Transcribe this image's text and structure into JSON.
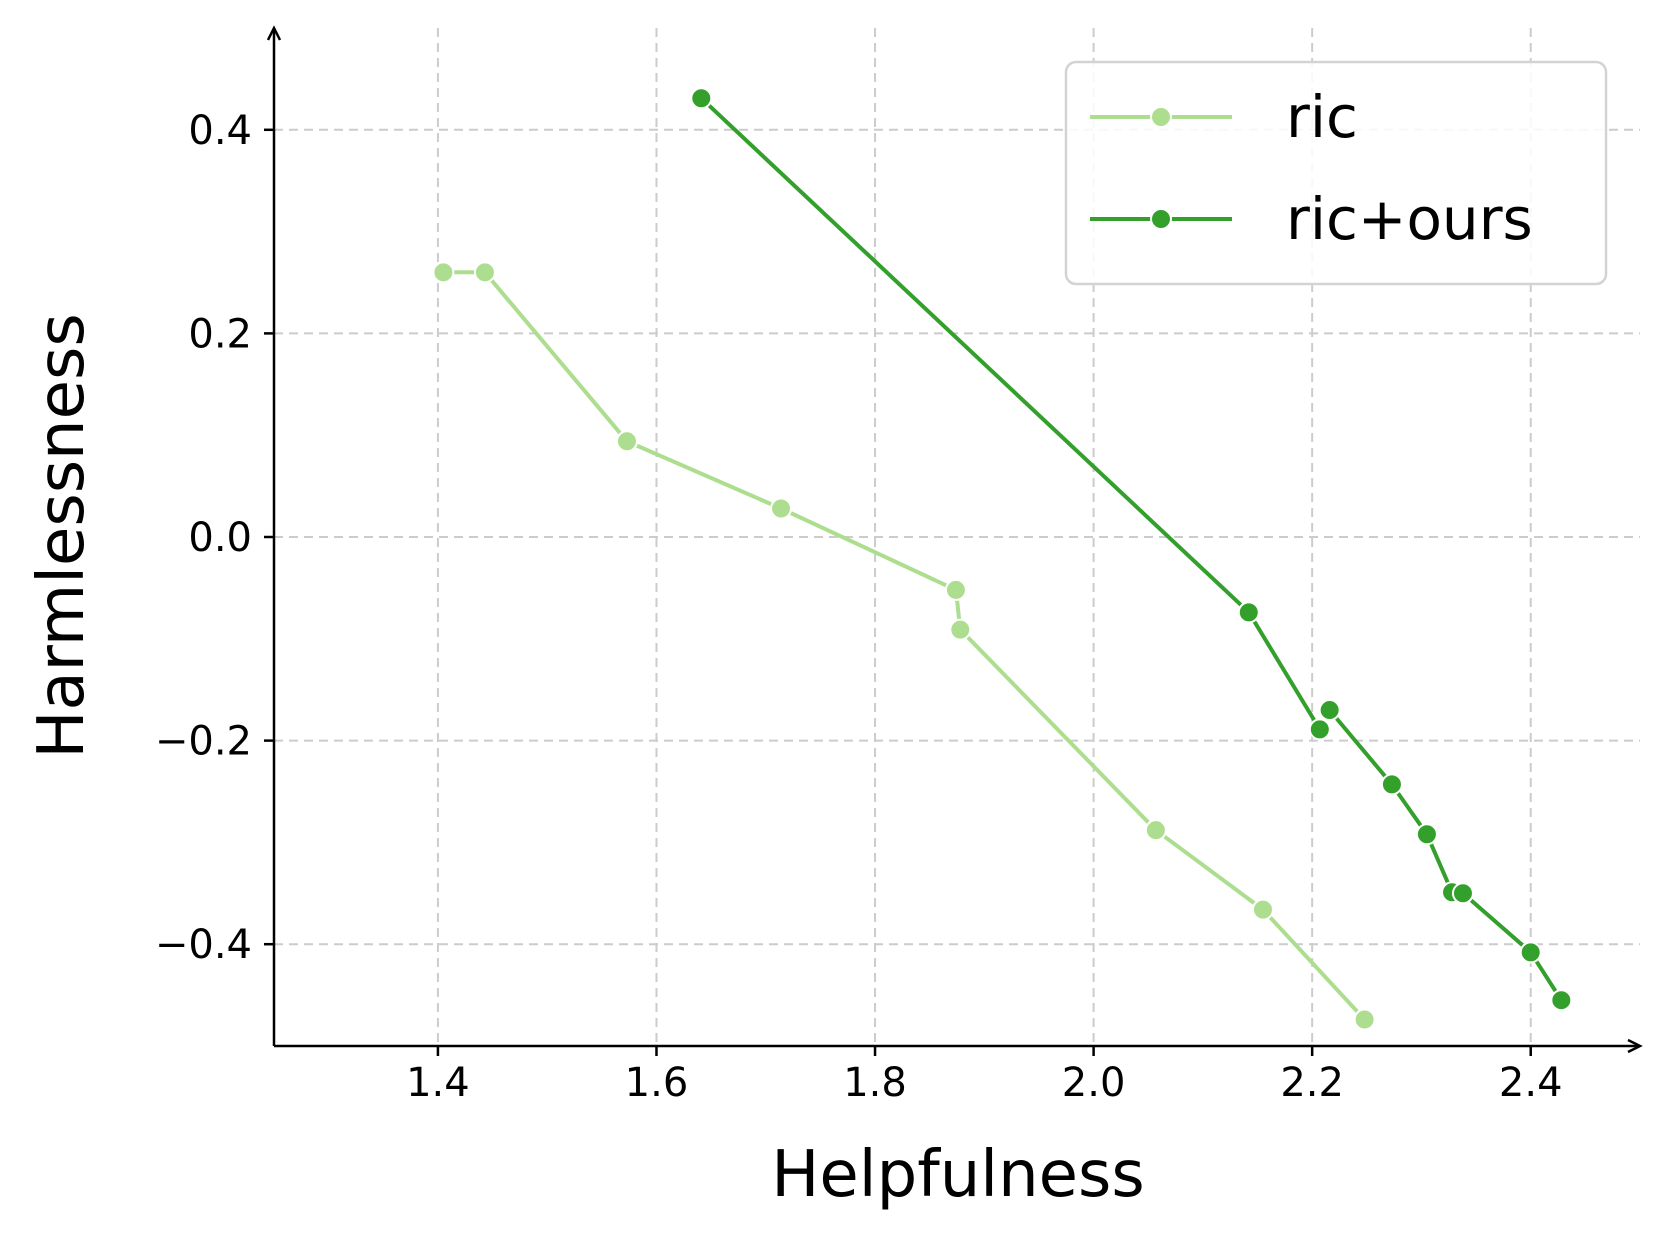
{
  "chart_data": {
    "type": "line",
    "xlabel": "Helpfulness",
    "ylabel": "Harmlessness",
    "xlim": [
      1.25,
      2.5
    ],
    "ylim": [
      -0.5,
      0.5
    ],
    "xticks": [
      1.4,
      1.6,
      1.8,
      2.0,
      2.2,
      2.4
    ],
    "xtick_labels": [
      "1.4",
      "1.6",
      "1.8",
      "2.0",
      "2.2",
      "2.4"
    ],
    "yticks": [
      -0.4,
      -0.2,
      0.0,
      0.2,
      0.4
    ],
    "ytick_labels": [
      "−0.4",
      "−0.2",
      "0.0",
      "0.2",
      "0.4"
    ],
    "grid": true,
    "legend_position": "top-right",
    "series": [
      {
        "name": "ric",
        "color": "#addd8e",
        "points": [
          [
            1.405,
            0.26
          ],
          [
            1.443,
            0.26
          ],
          [
            1.573,
            0.094
          ],
          [
            1.714,
            0.028
          ],
          [
            1.874,
            -0.052
          ],
          [
            1.878,
            -0.091
          ],
          [
            2.057,
            -0.288
          ],
          [
            2.155,
            -0.366
          ],
          [
            2.248,
            -0.474
          ]
        ]
      },
      {
        "name": "ric+ours",
        "color": "#33a02c",
        "points": [
          [
            1.641,
            0.431
          ],
          [
            2.142,
            -0.074
          ],
          [
            2.207,
            -0.189
          ],
          [
            2.216,
            -0.17
          ],
          [
            2.273,
            -0.243
          ],
          [
            2.305,
            -0.292
          ],
          [
            2.328,
            -0.349
          ],
          [
            2.338,
            -0.35
          ],
          [
            2.4,
            -0.408
          ],
          [
            2.428,
            -0.455
          ]
        ]
      }
    ]
  }
}
